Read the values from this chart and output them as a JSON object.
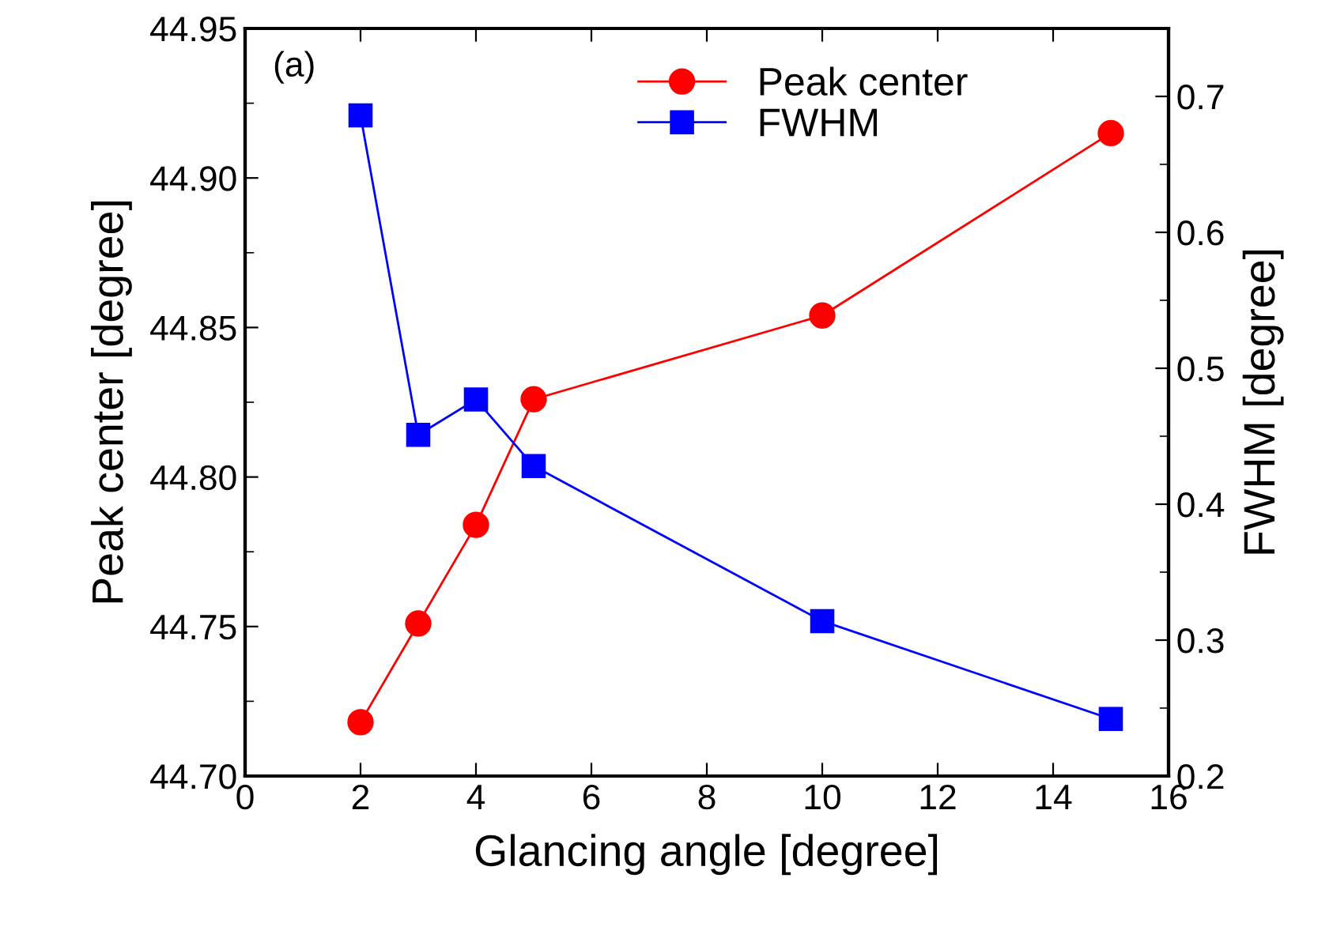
{
  "chart_data": {
    "type": "line",
    "xlabel": "Glancing angle [degree]",
    "ylabel": "Peak center [degree]",
    "y2label": "FWHM [degree]",
    "x": [
      2,
      3,
      4,
      5,
      10,
      15
    ],
    "series": [
      {
        "name": "Peak center",
        "color": "#ff0000",
        "marker": "circle",
        "values": [
          44.718,
          44.751,
          44.784,
          44.826,
          44.854,
          44.915
        ]
      },
      {
        "name": "FWHM",
        "color": "#0000ff",
        "marker": "square",
        "axis": "y2",
        "values": [
          0.686,
          0.451,
          0.477,
          0.428,
          0.314,
          0.242
        ]
      }
    ],
    "xlim": [
      0,
      16
    ],
    "xticks": [
      0,
      2,
      4,
      6,
      8,
      10,
      12,
      14,
      16
    ],
    "ylim": [
      44.7,
      44.95
    ],
    "yticks": [
      {
        "value": 44.7,
        "label": "44.70"
      },
      {
        "value": 44.75,
        "label": "44.75"
      },
      {
        "value": 44.8,
        "label": "44.80"
      },
      {
        "value": 44.85,
        "label": "44.85"
      },
      {
        "value": 44.9,
        "label": "44.90"
      },
      {
        "value": 44.95,
        "label": "44.95"
      }
    ],
    "y2lim": [
      0.2,
      0.75
    ],
    "y2ticks": [
      0.2,
      0.3,
      0.4,
      0.5,
      0.6,
      0.7
    ],
    "annotations": [
      "(a)"
    ],
    "legend": "top right",
    "grid": false,
    "line_style": "solid"
  }
}
